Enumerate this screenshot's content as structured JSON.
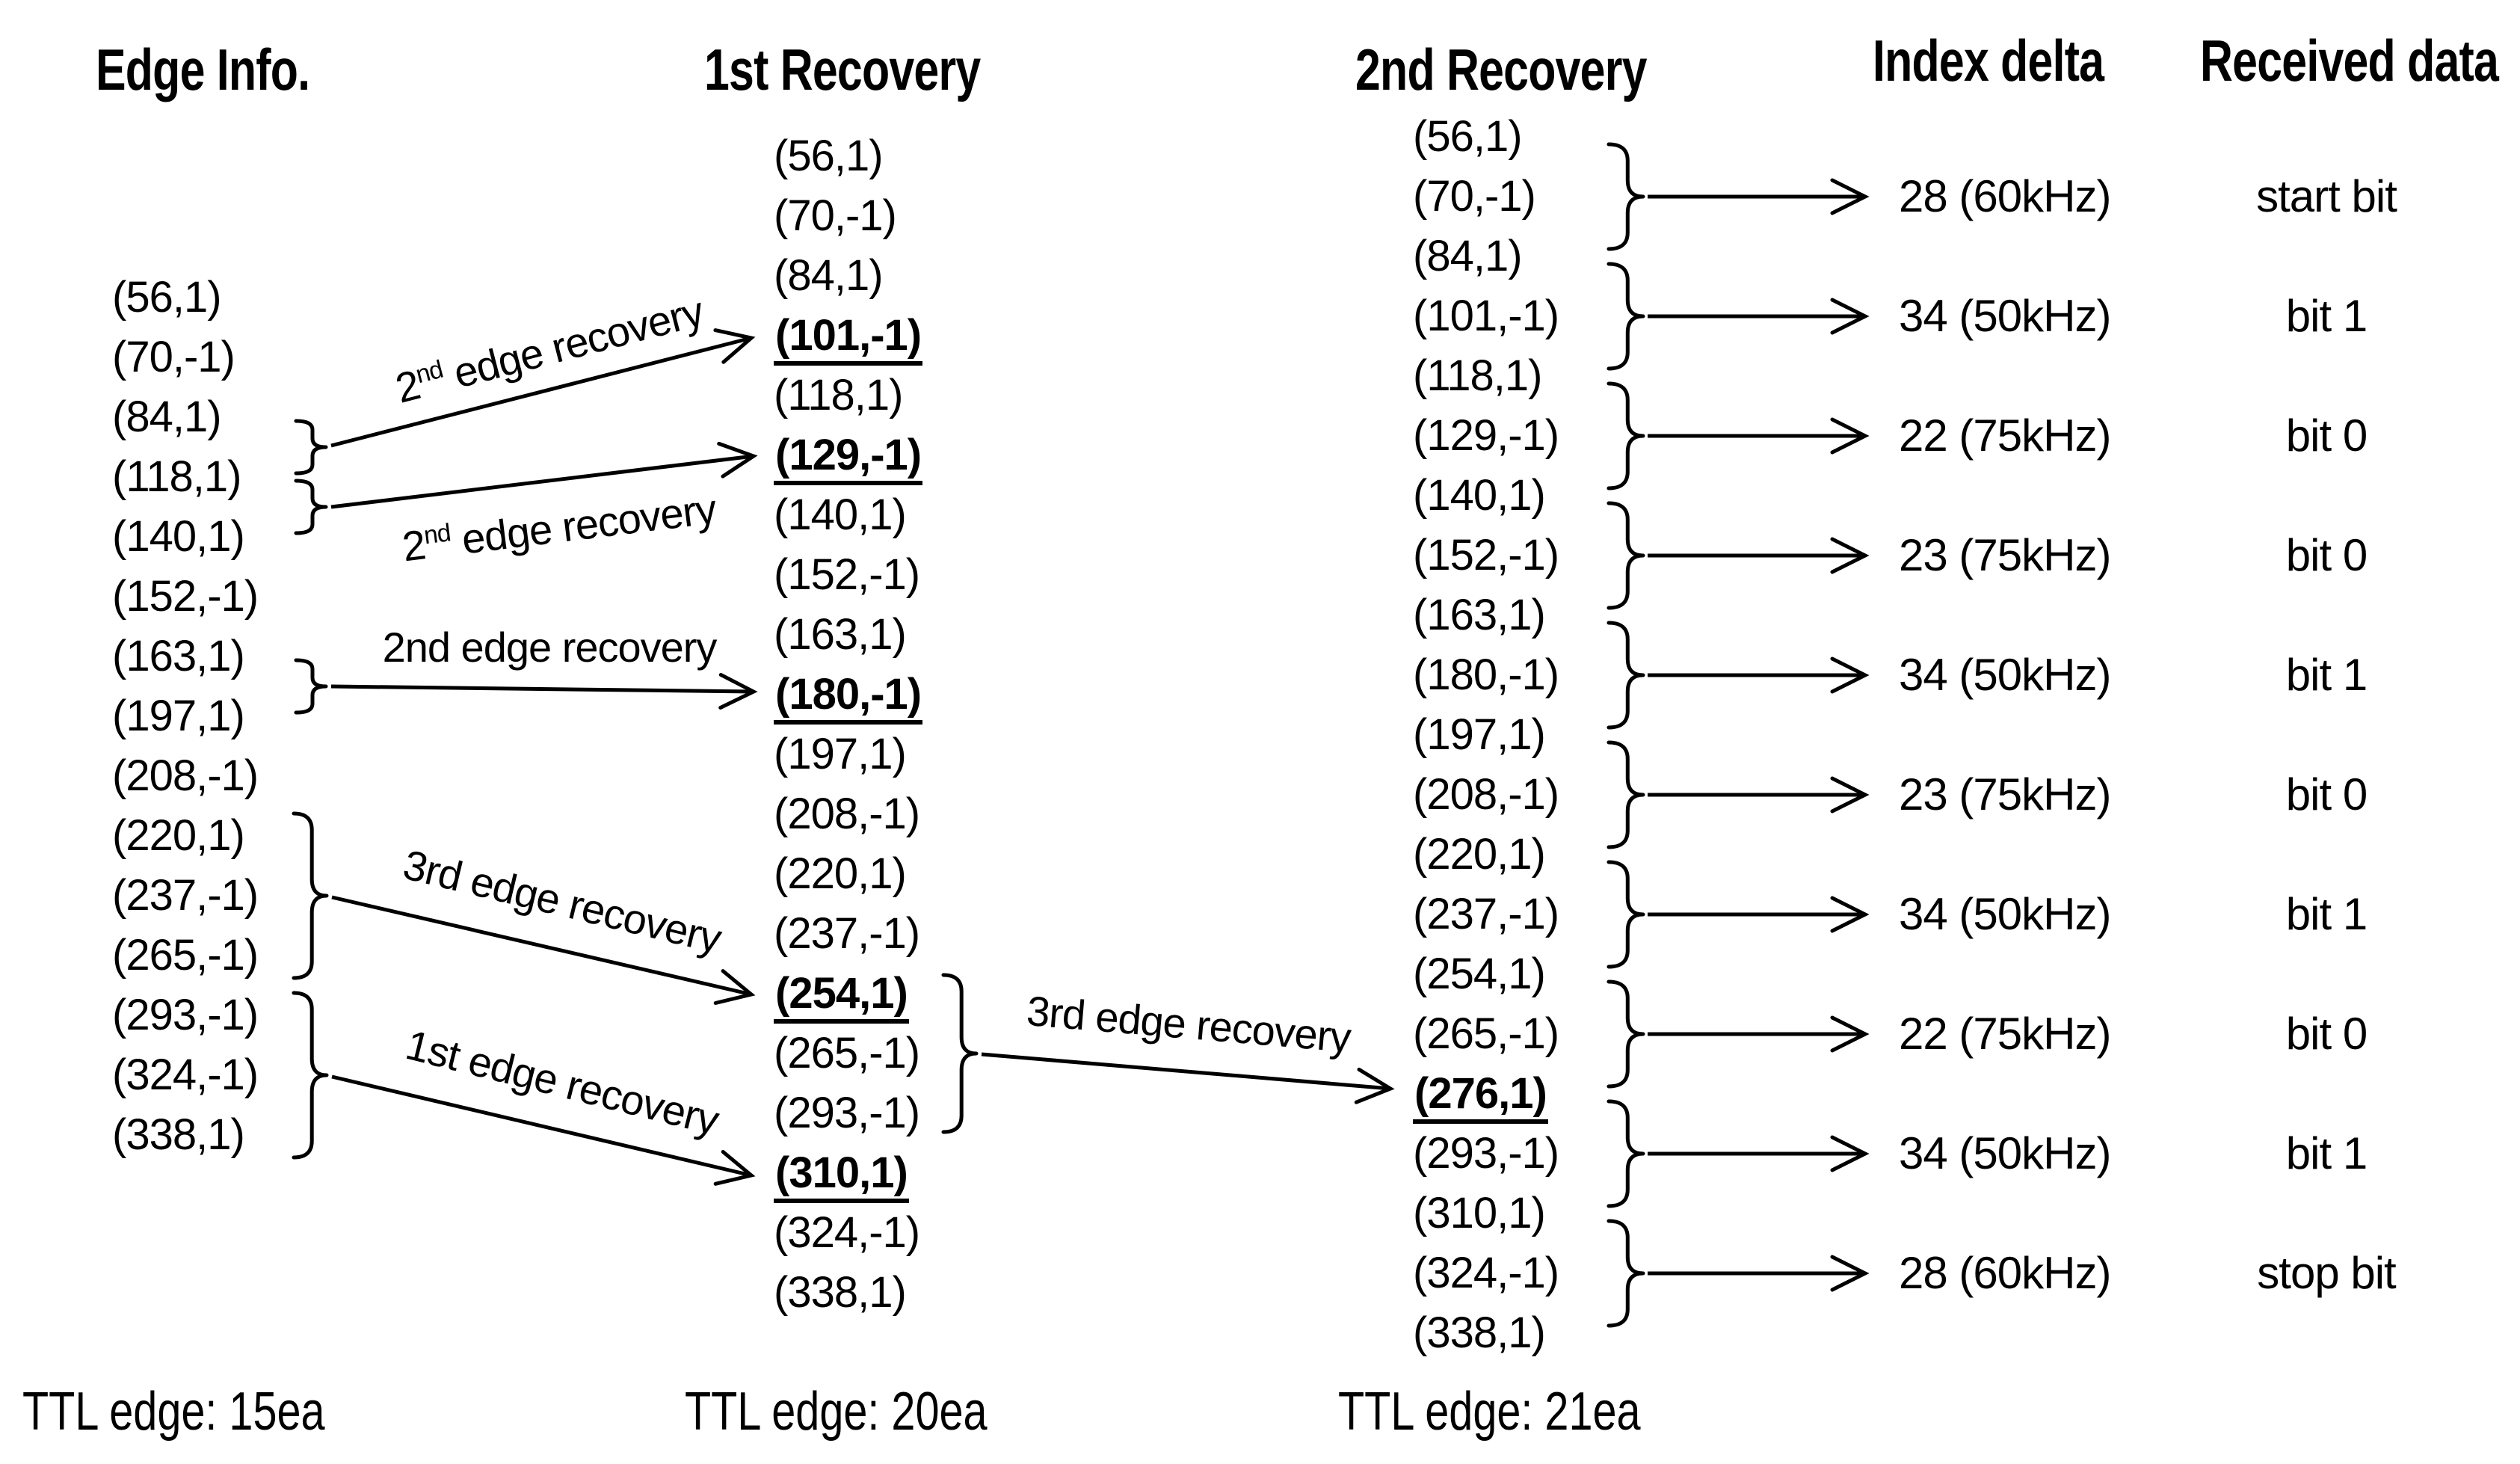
{
  "colors": {
    "ink": "#000000",
    "background": "#ffffff"
  },
  "headers": {
    "edge_info": "Edge Info.",
    "first_recovery": "1st Recovery",
    "second_recovery": "2nd Recovery",
    "index_delta": "Index delta",
    "received_data": "Received data"
  },
  "edge_info": {
    "rows": [
      "(56,1)",
      "(70,-1)",
      "(84,1)",
      "(118,1)",
      "(140,1)",
      "(152,-1)",
      "(163,1)",
      "(197,1)",
      "(208,-1)",
      "(220,1)",
      "(237,-1)",
      "(265,-1)",
      "(293,-1)",
      "(324,-1)",
      "(338,1)"
    ],
    "ttl": "TTL edge: 15ea"
  },
  "first_recovery": {
    "rows": [
      "(56,1)",
      "(70,-1)",
      "(84,1)",
      "(101,-1)",
      "(118,1)",
      "(129,-1)",
      "(140,1)",
      "(152,-1)",
      "(163,1)",
      "(180,-1)",
      "(197,1)",
      "(208,-1)",
      "(220,1)",
      "(237,-1)",
      "(254,1)",
      "(265,-1)",
      "(293,-1)",
      "(310,1)",
      "(324,-1)",
      "(338,1)"
    ],
    "bold_indices": [
      3,
      5,
      9,
      14,
      17
    ],
    "ttl": "TTL edge: 20ea"
  },
  "second_recovery": {
    "rows": [
      "(56,1)",
      "(70,-1)",
      "(84,1)",
      "(101,-1)",
      "(118,1)",
      "(129,-1)",
      "(140,1)",
      "(152,-1)",
      "(163,1)",
      "(180,-1)",
      "(197,1)",
      "(208,-1)",
      "(220,1)",
      "(237,-1)",
      "(254,1)",
      "(265,-1)",
      "(276,1)",
      "(293,-1)",
      "(310,1)",
      "(324,-1)",
      "(338,1)"
    ],
    "bold_indices": [
      16
    ],
    "ttl": "TTL edge: 21ea"
  },
  "results": [
    {
      "delta": "28 (60kHz)",
      "bit": "start bit"
    },
    {
      "delta": "34 (50kHz)",
      "bit": "bit 1"
    },
    {
      "delta": "22 (75kHz)",
      "bit": "bit 0"
    },
    {
      "delta": "23 (75kHz)",
      "bit": "bit 0"
    },
    {
      "delta": "34 (50kHz)",
      "bit": "bit 1"
    },
    {
      "delta": "23 (75kHz)",
      "bit": "bit 0"
    },
    {
      "delta": "34 (50kHz)",
      "bit": "bit 1"
    },
    {
      "delta": "22 (75kHz)",
      "bit": "bit 0"
    },
    {
      "delta": "34 (50kHz)",
      "bit": "bit 1"
    },
    {
      "delta": "28 (60kHz)",
      "bit": "stop bit"
    }
  ],
  "arrow_labels": [
    {
      "base": "2",
      "sup": "nd",
      "rest": " edge recovery"
    },
    {
      "base": "2",
      "sup": "nd",
      "rest": " edge recovery"
    },
    {
      "base": "2nd",
      "sup": "",
      "rest": " edge recovery"
    },
    {
      "base": "3rd",
      "sup": "",
      "rest": " edge recovery"
    },
    {
      "base": "1st",
      "sup": "",
      "rest": " edge recovery"
    },
    {
      "base": "3rd",
      "sup": "",
      "rest": " edge recovery"
    }
  ]
}
